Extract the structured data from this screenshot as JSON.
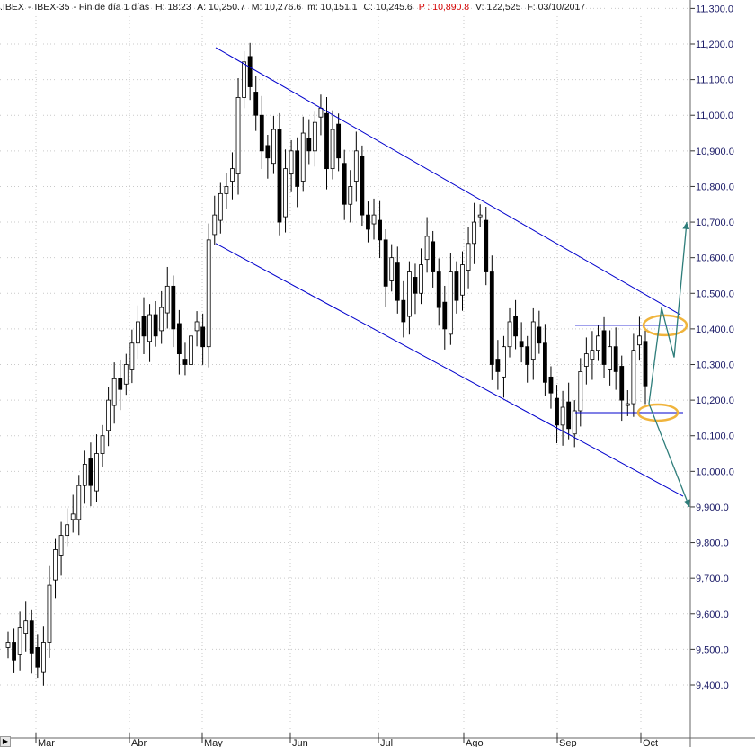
{
  "header": {
    "symbol": ".IBEX",
    "sep": "-",
    "name": "IBEX-35",
    "period": "- Fin de día 1 días",
    "hour": "H: 18:23",
    "open": "A: 10,250.7",
    "high": "M: 10,276.6",
    "low": "m: 10,151.1",
    "close": "C: 10,245.6",
    "pivot": "P : 10,890.8",
    "volume": "V: 122,525",
    "date": "F: 03/10/2017"
  },
  "colors": {
    "background": "#ffffff",
    "grid": "#c9c9c9",
    "candle": "#000000",
    "channel": "#0000cc",
    "range_lines": "#0000cc",
    "arrows": "#2e7d7a",
    "ellipses": "#f0b43c",
    "pivot_text": "#d40000",
    "axis_text": "#1a1a66"
  },
  "chart_data": {
    "type": "candlestick",
    "title": ".IBEX - IBEX-35 - Fin de día 1 días",
    "ylim": [
      9300,
      11300
    ],
    "y_ticks": [
      "9,400.0",
      "9,500.0",
      "9,600.0",
      "9,700.0",
      "9,800.0",
      "9,900.0",
      "10,000.0",
      "10,100.0",
      "10,200.0",
      "10,300.0",
      "10,400.0",
      "10,500.0",
      "10,600.0",
      "10,700.0",
      "10,800.0",
      "10,900.0",
      "11,000.0",
      "11,100.0",
      "11,200.0",
      "11,300.0"
    ],
    "x_ticks": [
      "Mar",
      "Abr",
      "May",
      "Jun",
      "Jul",
      "Ago",
      "Sep",
      "Oct"
    ],
    "grid": true,
    "series": [
      {
        "close_points": [
          [
            0,
            9520
          ],
          [
            2,
            9470
          ],
          [
            4,
            9560
          ],
          [
            6,
            9580
          ],
          [
            8,
            9490
          ],
          [
            10,
            9450
          ],
          [
            12,
            9520
          ],
          [
            14,
            9680
          ],
          [
            16,
            9780
          ],
          [
            18,
            9820
          ],
          [
            20,
            9850
          ],
          [
            22,
            9880
          ],
          [
            24,
            9960
          ],
          [
            26,
            10020
          ],
          [
            28,
            9960
          ],
          [
            30,
            10050
          ],
          [
            32,
            10100
          ],
          [
            34,
            10200
          ],
          [
            36,
            10260
          ],
          [
            38,
            10230
          ],
          [
            40,
            10300
          ],
          [
            42,
            10360
          ],
          [
            44,
            10420
          ],
          [
            46,
            10380
          ],
          [
            48,
            10440
          ],
          [
            50,
            10380
          ],
          [
            52,
            10460
          ],
          [
            54,
            10520
          ],
          [
            56,
            10400
          ],
          [
            58,
            10330
          ],
          [
            60,
            10300
          ],
          [
            62,
            10380
          ],
          [
            64,
            10420
          ],
          [
            66,
            10350
          ],
          [
            68,
            10650
          ],
          [
            70,
            10720
          ],
          [
            72,
            10780
          ],
          [
            74,
            10800
          ],
          [
            76,
            10850
          ],
          [
            78,
            11050
          ],
          [
            80,
            11150
          ],
          [
            82,
            11080
          ],
          [
            84,
            11000
          ],
          [
            86,
            10900
          ],
          [
            88,
            10880
          ],
          [
            90,
            10960
          ],
          [
            92,
            10700
          ],
          [
            94,
            10850
          ],
          [
            96,
            10900
          ],
          [
            98,
            10800
          ],
          [
            100,
            10950
          ],
          [
            102,
            10900
          ],
          [
            104,
            10980
          ],
          [
            106,
            11020
          ],
          [
            108,
            10850
          ],
          [
            110,
            10960
          ],
          [
            112,
            10880
          ],
          [
            114,
            10750
          ],
          [
            116,
            10800
          ],
          [
            118,
            10900
          ],
          [
            120,
            10720
          ],
          [
            122,
            10680
          ],
          [
            124,
            10720
          ],
          [
            126,
            10650
          ],
          [
            128,
            10520
          ],
          [
            130,
            10600
          ],
          [
            132,
            10480
          ],
          [
            134,
            10420
          ],
          [
            136,
            10560
          ],
          [
            138,
            10500
          ],
          [
            140,
            10580
          ],
          [
            142,
            10660
          ],
          [
            144,
            10560
          ],
          [
            146,
            10460
          ],
          [
            148,
            10400
          ],
          [
            150,
            10560
          ],
          [
            152,
            10480
          ],
          [
            154,
            10580
          ],
          [
            156,
            10640
          ],
          [
            158,
            10700
          ],
          [
            160,
            10720
          ],
          [
            162,
            10560
          ],
          [
            164,
            10300
          ],
          [
            166,
            10280
          ],
          [
            168,
            10350
          ],
          [
            170,
            10420
          ],
          [
            172,
            10380
          ],
          [
            174,
            10350
          ],
          [
            176,
            10300
          ],
          [
            178,
            10420
          ],
          [
            180,
            10360
          ],
          [
            182,
            10250
          ],
          [
            184,
            10220
          ],
          [
            186,
            10130
          ],
          [
            188,
            10180
          ],
          [
            190,
            10120
          ],
          [
            192,
            10170
          ],
          [
            194,
            10280
          ],
          [
            196,
            10330
          ],
          [
            198,
            10340
          ],
          [
            200,
            10380
          ],
          [
            202,
            10300
          ],
          [
            204,
            10350
          ],
          [
            206,
            10280
          ],
          [
            208,
            10200
          ],
          [
            210,
            10190
          ],
          [
            212,
            10340
          ],
          [
            214,
            10380
          ],
          [
            216,
            10240
          ]
        ]
      }
    ],
    "annotations": {
      "channel_upper": [
        [
          11190,
          "May start"
        ],
        [
          10440,
          "Oct end"
        ]
      ],
      "channel_lower": [
        [
          10640,
          "May start"
        ],
        [
          9930,
          "Oct end"
        ]
      ],
      "range_top": 10410,
      "range_bottom": 10165,
      "arrow_up_target": 10700,
      "arrow_down_target": 9900,
      "ellipse_top_value": 10410,
      "ellipse_bottom_value": 10165
    }
  }
}
